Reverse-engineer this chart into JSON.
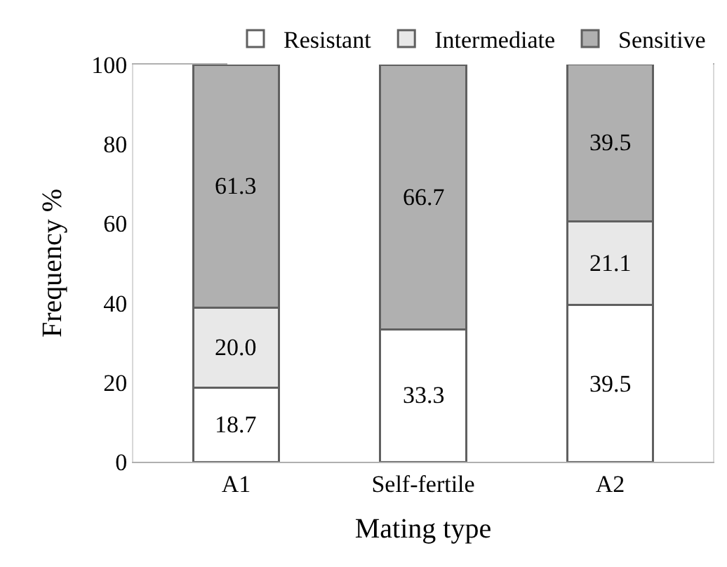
{
  "chart_data": {
    "type": "bar",
    "stacked": true,
    "xlabel": "Mating type",
    "ylabel": "Frequency %",
    "categories": [
      "A1",
      "Self-fertile",
      "A2"
    ],
    "series": [
      {
        "name": "Resistant",
        "color": "#ffffff",
        "values": [
          18.7,
          33.3,
          39.5
        ],
        "value_labels": [
          "18.7",
          "33.3",
          "39.5"
        ]
      },
      {
        "name": "Intermediate",
        "color": "#e8e8e8",
        "values": [
          20.0,
          0,
          21.1
        ],
        "value_labels": [
          "20.0",
          null,
          "21.1"
        ]
      },
      {
        "name": "Sensitive",
        "color": "#b0b0b0",
        "values": [
          61.3,
          66.7,
          39.5
        ],
        "value_labels": [
          "61.3",
          "66.7",
          "39.5"
        ]
      }
    ],
    "ylim": [
      0,
      100
    ],
    "yticks": [
      0,
      20,
      40,
      60,
      80,
      100
    ],
    "legend": "top"
  }
}
